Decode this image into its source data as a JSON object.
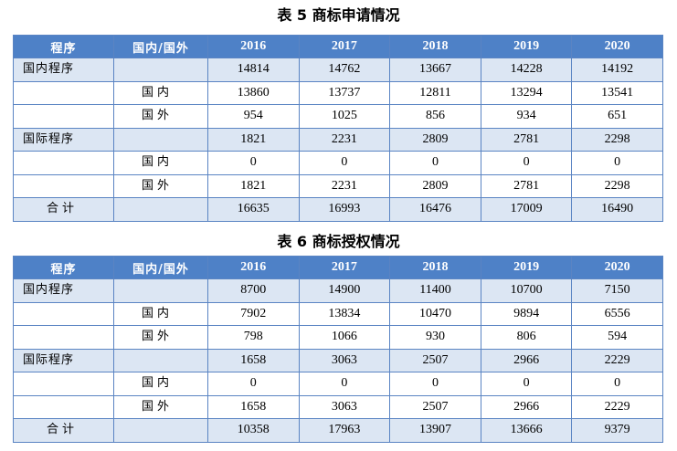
{
  "table5": {
    "caption": "表 5  商标申请情况",
    "headers": [
      "程序",
      "国内/国外",
      "2016",
      "2017",
      "2018",
      "2019",
      "2020"
    ],
    "rows": [
      {
        "program": "国内程序",
        "origin": "",
        "values": [
          "14814",
          "14762",
          "13667",
          "14228",
          "14192"
        ]
      },
      {
        "program": "",
        "origin": "国内",
        "values": [
          "13860",
          "13737",
          "12811",
          "13294",
          "13541"
        ]
      },
      {
        "program": "",
        "origin": "国外",
        "values": [
          "954",
          "1025",
          "856",
          "934",
          "651"
        ]
      },
      {
        "program": "国际程序",
        "origin": "",
        "values": [
          "1821",
          "2231",
          "2809",
          "2781",
          "2298"
        ]
      },
      {
        "program": "",
        "origin": "国内",
        "values": [
          "0",
          "0",
          "0",
          "0",
          "0"
        ]
      },
      {
        "program": "",
        "origin": "国外",
        "values": [
          "1821",
          "2231",
          "2809",
          "2781",
          "2298"
        ]
      },
      {
        "program": "合计",
        "origin": "",
        "values": [
          "16635",
          "16993",
          "16476",
          "17009",
          "16490"
        ]
      }
    ]
  },
  "table6": {
    "caption": "表 6  商标授权情况",
    "headers": [
      "程序",
      "国内/国外",
      "2016",
      "2017",
      "2018",
      "2019",
      "2020"
    ],
    "rows": [
      {
        "program": "国内程序",
        "origin": "",
        "values": [
          "8700",
          "14900",
          "11400",
          "10700",
          "7150"
        ]
      },
      {
        "program": "",
        "origin": "国内",
        "values": [
          "7902",
          "13834",
          "10470",
          "9894",
          "6556"
        ]
      },
      {
        "program": "",
        "origin": "国外",
        "values": [
          "798",
          "1066",
          "930",
          "806",
          "594"
        ]
      },
      {
        "program": "国际程序",
        "origin": "",
        "values": [
          "1658",
          "3063",
          "2507",
          "2966",
          "2229"
        ]
      },
      {
        "program": "",
        "origin": "国内",
        "values": [
          "0",
          "0",
          "0",
          "0",
          "0"
        ]
      },
      {
        "program": "",
        "origin": "国外",
        "values": [
          "1658",
          "3063",
          "2507",
          "2966",
          "2229"
        ]
      },
      {
        "program": "合计",
        "origin": "",
        "values": [
          "10358",
          "17963",
          "13907",
          "13666",
          "9379"
        ]
      }
    ]
  }
}
